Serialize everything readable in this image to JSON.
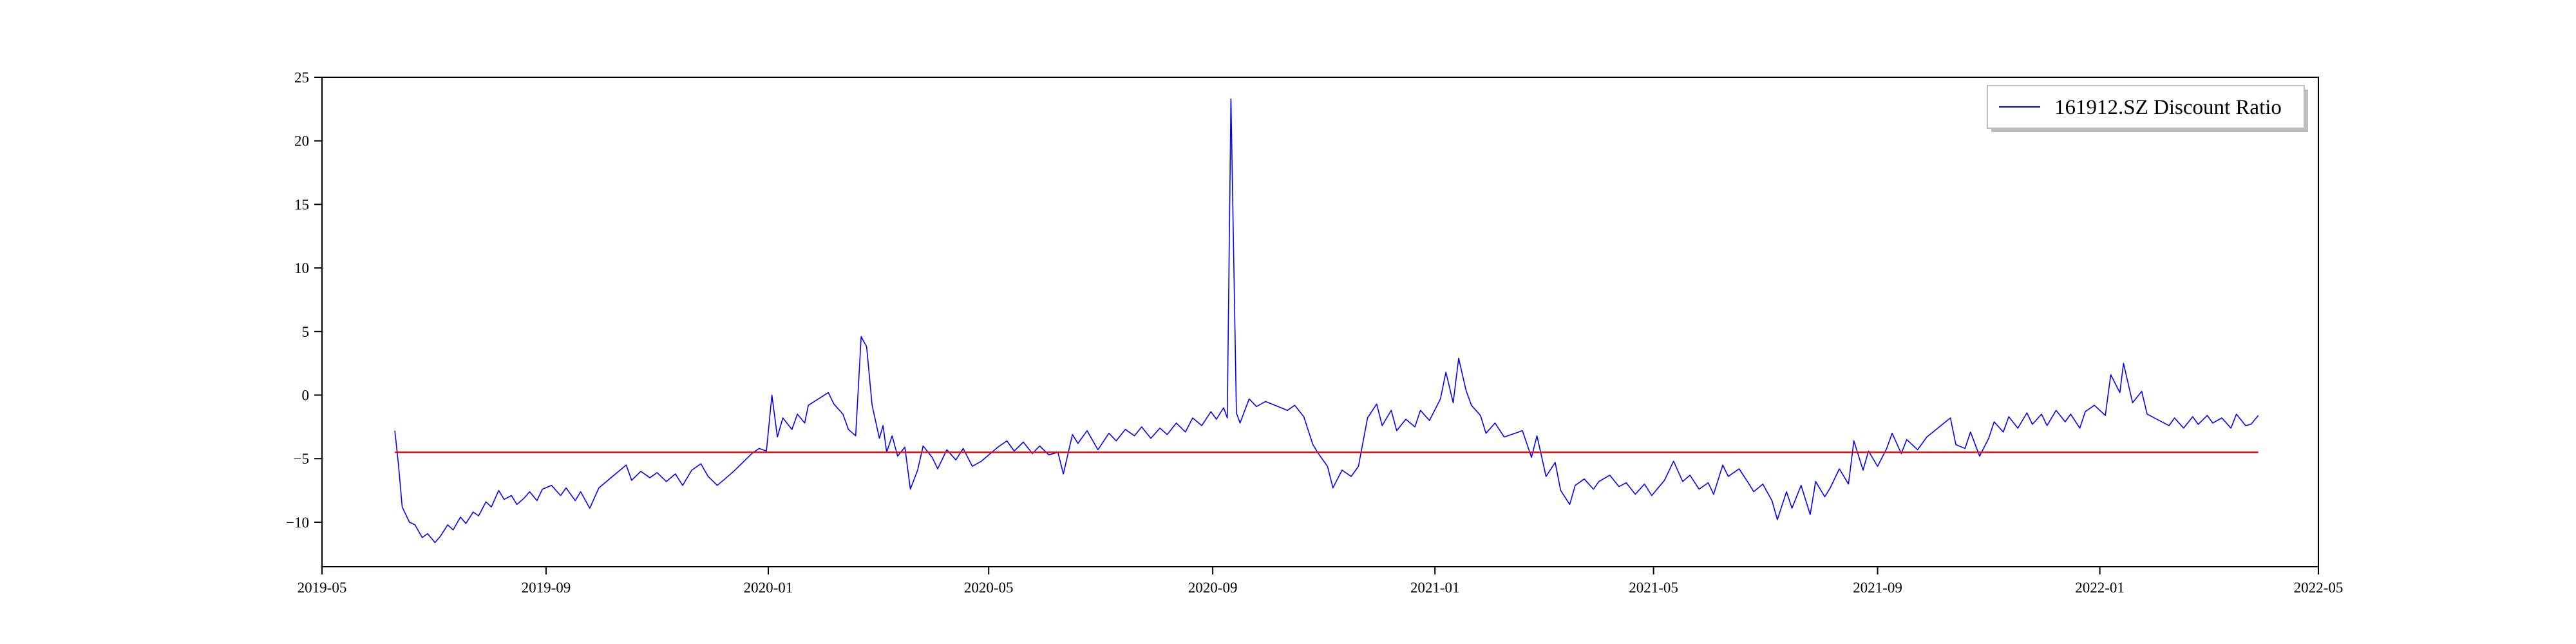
{
  "chart_data": {
    "type": "line",
    "title": "",
    "xlabel": "",
    "ylabel": "",
    "xlim": [
      "2019-05-01",
      "2022-05-01"
    ],
    "ylim": [
      -13.5,
      25
    ],
    "x_ticks": [
      "2019-05",
      "2019-09",
      "2020-01",
      "2020-05",
      "2020-09",
      "2021-01",
      "2021-05",
      "2021-09",
      "2022-01",
      "2022-05"
    ],
    "y_ticks": [
      -10,
      -5,
      0,
      5,
      10,
      15,
      20,
      25
    ],
    "grid": false,
    "legend": {
      "position": "top-right",
      "entries": [
        "161912.SZ Discount Ratio"
      ]
    },
    "colors": {
      "series": "#0000ff",
      "mean_line": "#ff0000",
      "axes": "#000000"
    },
    "series": [
      {
        "name": "161912.SZ Discount Ratio",
        "points": [
          [
            "2019-06-10",
            -2.8
          ],
          [
            "2019-06-12",
            -5.5
          ],
          [
            "2019-06-14",
            -8.8
          ],
          [
            "2019-06-18",
            -10.0
          ],
          [
            "2019-06-21",
            -10.2
          ],
          [
            "2019-06-25",
            -11.2
          ],
          [
            "2019-06-28",
            -10.9
          ],
          [
            "2019-07-02",
            -11.6
          ],
          [
            "2019-07-05",
            -11.1
          ],
          [
            "2019-07-09",
            -10.2
          ],
          [
            "2019-07-12",
            -10.6
          ],
          [
            "2019-07-16",
            -9.6
          ],
          [
            "2019-07-19",
            -10.1
          ],
          [
            "2019-07-23",
            -9.2
          ],
          [
            "2019-07-26",
            -9.5
          ],
          [
            "2019-07-30",
            -8.4
          ],
          [
            "2019-08-02",
            -8.8
          ],
          [
            "2019-08-06",
            -7.5
          ],
          [
            "2019-08-09",
            -8.2
          ],
          [
            "2019-08-13",
            -7.9
          ],
          [
            "2019-08-16",
            -8.6
          ],
          [
            "2019-08-20",
            -8.1
          ],
          [
            "2019-08-23",
            -7.6
          ],
          [
            "2019-08-27",
            -8.3
          ],
          [
            "2019-08-30",
            -7.4
          ],
          [
            "2019-09-04",
            -7.1
          ],
          [
            "2019-09-09",
            -7.9
          ],
          [
            "2019-09-12",
            -7.3
          ],
          [
            "2019-09-17",
            -8.3
          ],
          [
            "2019-09-20",
            -7.6
          ],
          [
            "2019-09-25",
            -8.9
          ],
          [
            "2019-09-30",
            -7.3
          ],
          [
            "2019-10-10",
            -6.1
          ],
          [
            "2019-10-15",
            -5.5
          ],
          [
            "2019-10-18",
            -6.7
          ],
          [
            "2019-10-23",
            -6.0
          ],
          [
            "2019-10-28",
            -6.5
          ],
          [
            "2019-11-01",
            -6.1
          ],
          [
            "2019-11-06",
            -6.8
          ],
          [
            "2019-11-11",
            -6.2
          ],
          [
            "2019-11-15",
            -7.1
          ],
          [
            "2019-11-20",
            -5.9
          ],
          [
            "2019-11-25",
            -5.4
          ],
          [
            "2019-11-29",
            -6.4
          ],
          [
            "2019-12-04",
            -7.1
          ],
          [
            "2019-12-09",
            -6.5
          ],
          [
            "2019-12-13",
            -6.0
          ],
          [
            "2019-12-18",
            -5.3
          ],
          [
            "2019-12-23",
            -4.6
          ],
          [
            "2019-12-27",
            -4.2
          ],
          [
            "2019-12-31",
            -4.4
          ],
          [
            "2020-01-03",
            0.0
          ],
          [
            "2020-01-06",
            -3.3
          ],
          [
            "2020-01-09",
            -1.8
          ],
          [
            "2020-01-14",
            -2.7
          ],
          [
            "2020-01-17",
            -1.5
          ],
          [
            "2020-01-21",
            -2.2
          ],
          [
            "2020-01-23",
            -0.8
          ],
          [
            "2020-02-03",
            0.2
          ],
          [
            "2020-02-06",
            -0.7
          ],
          [
            "2020-02-11",
            -1.5
          ],
          [
            "2020-02-14",
            -2.7
          ],
          [
            "2020-02-18",
            -3.2
          ],
          [
            "2020-02-21",
            4.6
          ],
          [
            "2020-02-24",
            3.8
          ],
          [
            "2020-02-27",
            -0.8
          ],
          [
            "2020-03-02",
            -3.4
          ],
          [
            "2020-03-04",
            -2.4
          ],
          [
            "2020-03-06",
            -4.5
          ],
          [
            "2020-03-09",
            -3.2
          ],
          [
            "2020-03-12",
            -4.8
          ],
          [
            "2020-03-16",
            -4.1
          ],
          [
            "2020-03-19",
            -7.4
          ],
          [
            "2020-03-23",
            -5.9
          ],
          [
            "2020-03-26",
            -4.0
          ],
          [
            "2020-03-31",
            -4.9
          ],
          [
            "2020-04-03",
            -5.8
          ],
          [
            "2020-04-08",
            -4.3
          ],
          [
            "2020-04-13",
            -5.1
          ],
          [
            "2020-04-17",
            -4.2
          ],
          [
            "2020-04-22",
            -5.6
          ],
          [
            "2020-04-27",
            -5.2
          ],
          [
            "2020-05-06",
            -4.1
          ],
          [
            "2020-05-11",
            -3.6
          ],
          [
            "2020-05-15",
            -4.4
          ],
          [
            "2020-05-20",
            -3.7
          ],
          [
            "2020-05-25",
            -4.6
          ],
          [
            "2020-05-29",
            -4.0
          ],
          [
            "2020-06-03",
            -4.7
          ],
          [
            "2020-06-08",
            -4.5
          ],
          [
            "2020-06-11",
            -6.2
          ],
          [
            "2020-06-16",
            -3.1
          ],
          [
            "2020-06-19",
            -3.8
          ],
          [
            "2020-06-24",
            -2.8
          ],
          [
            "2020-06-30",
            -4.3
          ],
          [
            "2020-07-06",
            -3.0
          ],
          [
            "2020-07-10",
            -3.6
          ],
          [
            "2020-07-15",
            -2.7
          ],
          [
            "2020-07-20",
            -3.2
          ],
          [
            "2020-07-24",
            -2.5
          ],
          [
            "2020-07-29",
            -3.4
          ],
          [
            "2020-08-03",
            -2.6
          ],
          [
            "2020-08-07",
            -3.1
          ],
          [
            "2020-08-12",
            -2.2
          ],
          [
            "2020-08-17",
            -2.9
          ],
          [
            "2020-08-21",
            -1.8
          ],
          [
            "2020-08-26",
            -2.4
          ],
          [
            "2020-08-31",
            -1.3
          ],
          [
            "2020-09-03",
            -1.9
          ],
          [
            "2020-09-07",
            -1.0
          ],
          [
            "2020-09-09",
            -1.8
          ],
          [
            "2020-09-11",
            23.3
          ],
          [
            "2020-09-14",
            -1.4
          ],
          [
            "2020-09-16",
            -2.2
          ],
          [
            "2020-09-21",
            -0.3
          ],
          [
            "2020-09-25",
            -0.9
          ],
          [
            "2020-09-30",
            -0.5
          ],
          [
            "2020-10-12",
            -1.2
          ],
          [
            "2020-10-16",
            -0.8
          ],
          [
            "2020-10-21",
            -1.7
          ],
          [
            "2020-10-26",
            -3.9
          ],
          [
            "2020-10-29",
            -4.6
          ],
          [
            "2020-11-03",
            -5.6
          ],
          [
            "2020-11-06",
            -7.3
          ],
          [
            "2020-11-11",
            -5.9
          ],
          [
            "2020-11-16",
            -6.4
          ],
          [
            "2020-11-20",
            -5.6
          ],
          [
            "2020-11-25",
            -1.8
          ],
          [
            "2020-11-30",
            -0.7
          ],
          [
            "2020-12-03",
            -2.4
          ],
          [
            "2020-12-08",
            -1.2
          ],
          [
            "2020-12-11",
            -2.8
          ],
          [
            "2020-12-16",
            -1.9
          ],
          [
            "2020-12-21",
            -2.5
          ],
          [
            "2020-12-24",
            -1.2
          ],
          [
            "2020-12-29",
            -2.0
          ],
          [
            "2021-01-04",
            -0.3
          ],
          [
            "2021-01-07",
            1.8
          ],
          [
            "2021-01-11",
            -0.6
          ],
          [
            "2021-01-14",
            2.9
          ],
          [
            "2021-01-18",
            0.4
          ],
          [
            "2021-01-21",
            -0.8
          ],
          [
            "2021-01-26",
            -1.6
          ],
          [
            "2021-01-29",
            -3.0
          ],
          [
            "2021-02-03",
            -2.2
          ],
          [
            "2021-02-08",
            -3.3
          ],
          [
            "2021-02-18",
            -2.8
          ],
          [
            "2021-02-23",
            -4.9
          ],
          [
            "2021-02-26",
            -3.2
          ],
          [
            "2021-03-03",
            -6.4
          ],
          [
            "2021-03-08",
            -5.3
          ],
          [
            "2021-03-11",
            -7.5
          ],
          [
            "2021-03-16",
            -8.6
          ],
          [
            "2021-03-19",
            -7.1
          ],
          [
            "2021-03-24",
            -6.6
          ],
          [
            "2021-03-29",
            -7.4
          ],
          [
            "2021-04-01",
            -6.8
          ],
          [
            "2021-04-07",
            -6.3
          ],
          [
            "2021-04-12",
            -7.2
          ],
          [
            "2021-04-16",
            -6.9
          ],
          [
            "2021-04-21",
            -7.8
          ],
          [
            "2021-04-26",
            -7.0
          ],
          [
            "2021-04-30",
            -7.9
          ],
          [
            "2021-05-07",
            -6.7
          ],
          [
            "2021-05-12",
            -5.2
          ],
          [
            "2021-05-17",
            -6.8
          ],
          [
            "2021-05-21",
            -6.3
          ],
          [
            "2021-05-26",
            -7.4
          ],
          [
            "2021-05-31",
            -6.9
          ],
          [
            "2021-06-03",
            -7.8
          ],
          [
            "2021-06-08",
            -5.5
          ],
          [
            "2021-06-11",
            -6.4
          ],
          [
            "2021-06-17",
            -5.8
          ],
          [
            "2021-06-22",
            -6.9
          ],
          [
            "2021-06-25",
            -7.6
          ],
          [
            "2021-06-30",
            -7.0
          ],
          [
            "2021-07-05",
            -8.3
          ],
          [
            "2021-07-08",
            -9.8
          ],
          [
            "2021-07-13",
            -7.6
          ],
          [
            "2021-07-16",
            -8.9
          ],
          [
            "2021-07-21",
            -7.1
          ],
          [
            "2021-07-26",
            -9.4
          ],
          [
            "2021-07-29",
            -6.8
          ],
          [
            "2021-08-03",
            -8.0
          ],
          [
            "2021-08-06",
            -7.3
          ],
          [
            "2021-08-11",
            -5.8
          ],
          [
            "2021-08-16",
            -7.0
          ],
          [
            "2021-08-19",
            -3.6
          ],
          [
            "2021-08-24",
            -5.9
          ],
          [
            "2021-08-27",
            -4.4
          ],
          [
            "2021-09-01",
            -5.6
          ],
          [
            "2021-09-06",
            -4.2
          ],
          [
            "2021-09-09",
            -3.0
          ],
          [
            "2021-09-14",
            -4.6
          ],
          [
            "2021-09-17",
            -3.5
          ],
          [
            "2021-09-23",
            -4.3
          ],
          [
            "2021-09-28",
            -3.3
          ],
          [
            "2021-10-11",
            -1.8
          ],
          [
            "2021-10-14",
            -3.9
          ],
          [
            "2021-10-19",
            -4.2
          ],
          [
            "2021-10-22",
            -2.9
          ],
          [
            "2021-10-27",
            -4.8
          ],
          [
            "2021-11-01",
            -3.4
          ],
          [
            "2021-11-04",
            -2.1
          ],
          [
            "2021-11-09",
            -2.9
          ],
          [
            "2021-11-12",
            -1.7
          ],
          [
            "2021-11-17",
            -2.6
          ],
          [
            "2021-11-22",
            -1.4
          ],
          [
            "2021-11-25",
            -2.3
          ],
          [
            "2021-11-30",
            -1.5
          ],
          [
            "2021-12-03",
            -2.4
          ],
          [
            "2021-12-08",
            -1.2
          ],
          [
            "2021-12-13",
            -2.1
          ],
          [
            "2021-12-16",
            -1.5
          ],
          [
            "2021-12-21",
            -2.6
          ],
          [
            "2021-12-24",
            -1.3
          ],
          [
            "2021-12-29",
            -0.8
          ],
          [
            "2022-01-04",
            -1.6
          ],
          [
            "2022-01-07",
            1.6
          ],
          [
            "2022-01-12",
            0.2
          ],
          [
            "2022-01-14",
            2.5
          ],
          [
            "2022-01-19",
            -0.6
          ],
          [
            "2022-01-24",
            0.3
          ],
          [
            "2022-01-27",
            -1.5
          ],
          [
            "2022-02-08",
            -2.4
          ],
          [
            "2022-02-11",
            -1.8
          ],
          [
            "2022-02-16",
            -2.6
          ],
          [
            "2022-02-21",
            -1.7
          ],
          [
            "2022-02-24",
            -2.3
          ],
          [
            "2022-03-01",
            -1.6
          ],
          [
            "2022-03-04",
            -2.2
          ],
          [
            "2022-03-09",
            -1.8
          ],
          [
            "2022-03-14",
            -2.6
          ],
          [
            "2022-03-17",
            -1.5
          ],
          [
            "2022-03-22",
            -2.4
          ],
          [
            "2022-03-25",
            -2.3
          ],
          [
            "2022-03-29",
            -1.6
          ]
        ]
      },
      {
        "points": [
          [
            "2019-06-10",
            -4.5
          ],
          [
            "2022-03-29",
            -4.5
          ]
        ]
      }
    ]
  }
}
